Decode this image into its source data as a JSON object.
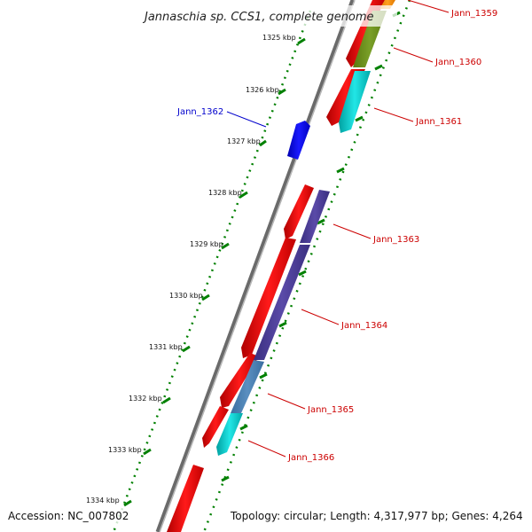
{
  "title": "Jannaschia sp. CCS1, complete genome",
  "footer": {
    "accession": "Accession: NC_007802",
    "summary": "Topology: circular; Length: 4,317,977 bp; Genes: 4,264"
  },
  "scale": {
    "labels": [
      "1325 kbp",
      "1326 kbp",
      "1327 kbp",
      "1328 kbp",
      "1329 kbp",
      "1330 kbp",
      "1331 kbp",
      "1332 kbp",
      "1333 kbp",
      "1334 kbp"
    ]
  },
  "genes": [
    {
      "name": "Jann_1359",
      "label_color": "#cc0000"
    },
    {
      "name": "Jann_1360",
      "label_color": "#cc0000"
    },
    {
      "name": "Jann_1361",
      "label_color": "#cc0000"
    },
    {
      "name": "Jann_1362",
      "label_color": "#0000cc"
    },
    {
      "name": "Jann_1363",
      "label_color": "#cc0000"
    },
    {
      "name": "Jann_1364",
      "label_color": "#cc0000"
    },
    {
      "name": "Jann_1365",
      "label_color": "#cc0000"
    },
    {
      "name": "Jann_1366",
      "label_color": "#cc0000"
    }
  ],
  "colors": {
    "backbone": "#888888",
    "cds": "#ff0000",
    "ticks": "#008000"
  }
}
